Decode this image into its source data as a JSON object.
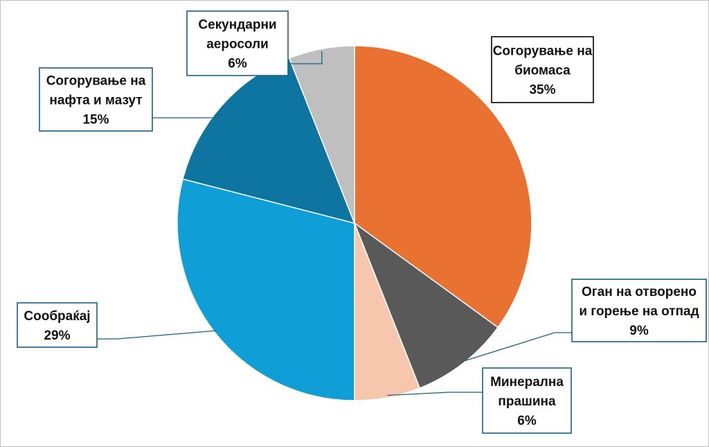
{
  "chart_data": {
    "type": "pie",
    "slices": [
      {
        "label_lines": [
          "Согорување на",
          "биомаса"
        ],
        "percent_label": "35%",
        "value": 35,
        "color": "#E97132",
        "border": "#000000"
      },
      {
        "label_lines": [
          "Оган на отворено",
          "и горење на отпад"
        ],
        "percent_label": "9%",
        "value": 9,
        "color": "#595959",
        "border": "#156082"
      },
      {
        "label_lines": [
          "Минерална",
          "прашина"
        ],
        "percent_label": "6%",
        "value": 6,
        "color": "#F6C6AD",
        "border": "#156082"
      },
      {
        "label_lines": [
          "Сообраќај"
        ],
        "percent_label": "29%",
        "value": 29,
        "color": "#0F9ED5",
        "border": "#156082"
      },
      {
        "label_lines": [
          "Согорување на",
          "нафта и мазут"
        ],
        "percent_label": "15%",
        "value": 15,
        "color": "#0E75A0",
        "border": "#156082"
      },
      {
        "label_lines": [
          "Секундарни",
          "аеросоли"
        ],
        "percent_label": "6%",
        "value": 6,
        "color": "#BFBFBF",
        "border": "#156082"
      }
    ],
    "start_angle_deg": 0,
    "direction": "clockwise",
    "legend": "none",
    "data_labels": "callouts"
  }
}
